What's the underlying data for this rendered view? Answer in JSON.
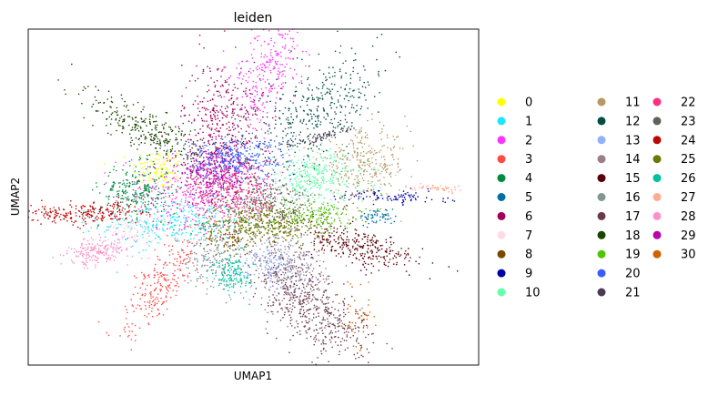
{
  "chart_data": {
    "type": "scatter",
    "title": "leiden",
    "xlabel": "UMAP1",
    "ylabel": "UMAP2",
    "xlim": [
      0,
      10
    ],
    "ylim": [
      0,
      10
    ],
    "grid": false,
    "ticks": false,
    "legend_placement": "right",
    "legend_columns": 3,
    "clusters": [
      {
        "name": "0",
        "color": "#FFFF00",
        "n": 120,
        "blobs": [
          {
            "center": [
              2.91,
              5.85
            ],
            "spread": [
              0.3,
              0.3
            ],
            "rot": 0
          }
        ]
      },
      {
        "name": "1",
        "color": "#1CE6FF",
        "n": 350,
        "blobs": [
          {
            "center": [
              3.21,
              4.23
            ],
            "spread": [
              0.8,
              0.35
            ],
            "rot": 0
          }
        ]
      },
      {
        "name": "2",
        "color": "#FF34FF",
        "n": 600,
        "blobs": [
          {
            "center": [
              3.62,
              5.04
            ],
            "spread": [
              0.8,
              0.6
            ],
            "rot": 0
          },
          {
            "center": [
              5.33,
              8.83
            ],
            "spread": [
              0.35,
              1.0
            ],
            "rot": -15
          }
        ]
      },
      {
        "name": "3",
        "color": "#FF4A46",
        "n": 250,
        "blobs": [
          {
            "center": [
              3.01,
              2.47
            ],
            "spread": [
              0.25,
              0.8
            ],
            "rot": -25
          }
        ]
      },
      {
        "name": "4",
        "color": "#008941",
        "n": 250,
        "blobs": [
          {
            "center": [
              2.4,
              5.18
            ],
            "spread": [
              0.4,
              0.4
            ],
            "rot": 0
          }
        ]
      },
      {
        "name": "5",
        "color": "#006FA6",
        "n": 60,
        "blobs": [
          {
            "center": [
              7.76,
              4.42
            ],
            "spread": [
              0.2,
              0.12
            ],
            "rot": 0
          }
        ]
      },
      {
        "name": "6",
        "color": "#A30059",
        "n": 450,
        "blobs": [
          {
            "center": [
              4.32,
              7.07
            ],
            "spread": [
              0.45,
              1.0
            ],
            "rot": 0
          }
        ]
      },
      {
        "name": "7",
        "color": "#FFDBE5",
        "n": 100,
        "blobs": [
          {
            "center": [
              2.3,
              4.09
            ],
            "spread": [
              0.3,
              0.2
            ],
            "rot": 0
          }
        ]
      },
      {
        "name": "8",
        "color": "#7A4900",
        "n": 80,
        "blobs": [
          {
            "center": [
              4.53,
              3.69
            ],
            "spread": [
              0.3,
              0.2
            ],
            "rot": 0
          }
        ]
      },
      {
        "name": "9",
        "color": "#0000A6",
        "n": 100,
        "blobs": [
          {
            "center": [
              8.06,
              5.01
            ],
            "spread": [
              0.6,
              0.1
            ],
            "rot": -4
          }
        ]
      },
      {
        "name": "10",
        "color": "#63FFAC",
        "n": 350,
        "blobs": [
          {
            "center": [
              6.34,
              5.58
            ],
            "spread": [
              0.6,
              0.4
            ],
            "rot": 0
          }
        ]
      },
      {
        "name": "11",
        "color": "#B79762",
        "n": 300,
        "blobs": [
          {
            "center": [
              7.45,
              5.99
            ],
            "spread": [
              0.5,
              0.5
            ],
            "rot": 0
          }
        ]
      },
      {
        "name": "12",
        "color": "#004D43",
        "n": 400,
        "blobs": [
          {
            "center": [
              6.34,
              7.48
            ],
            "spread": [
              0.5,
              1.0
            ],
            "rot": -35
          }
        ]
      },
      {
        "name": "13",
        "color": "#8FB0FF",
        "n": 200,
        "blobs": [
          {
            "center": [
              5.43,
              3.01
            ],
            "spread": [
              0.4,
              0.4
            ],
            "rot": 0
          }
        ]
      },
      {
        "name": "14",
        "color": "#997D87",
        "n": 300,
        "blobs": [
          {
            "center": [
              5.84,
              2.74
            ],
            "spread": [
              0.4,
              0.6
            ],
            "rot": 0
          }
        ]
      },
      {
        "name": "15",
        "color": "#5A0007",
        "n": 300,
        "blobs": [
          {
            "center": [
              7.35,
              3.5
            ],
            "spread": [
              0.7,
              0.25
            ],
            "rot": -20
          }
        ]
      },
      {
        "name": "16",
        "color": "#809693",
        "n": 150,
        "blobs": [
          {
            "center": [
              4.02,
              3.14
            ],
            "spread": [
              0.3,
              0.4
            ],
            "rot": 0
          }
        ]
      },
      {
        "name": "17",
        "color": "#6A3A4C",
        "n": 500,
        "blobs": [
          {
            "center": [
              6.34,
              1.65
            ],
            "spread": [
              0.4,
              1.0
            ],
            "rot": 35
          }
        ]
      },
      {
        "name": "18",
        "color": "#1B4400",
        "n": 300,
        "blobs": [
          {
            "center": [
              2.71,
              6.94
            ],
            "spread": [
              0.8,
              0.3
            ],
            "rot": -35
          }
        ]
      },
      {
        "name": "19",
        "color": "#4FC601",
        "n": 150,
        "blobs": [
          {
            "center": [
              6.34,
              4.5
            ],
            "spread": [
              0.5,
              0.2
            ],
            "rot": 0
          }
        ]
      },
      {
        "name": "20",
        "color": "#3B5DFF",
        "n": 400,
        "blobs": [
          {
            "center": [
              4.53,
              6.12
            ],
            "spread": [
              0.6,
              0.35
            ],
            "rot": 0
          }
        ]
      },
      {
        "name": "21",
        "color": "#4A3B53",
        "n": 60,
        "blobs": [
          {
            "center": [
              6.55,
              6.8
            ],
            "spread": [
              0.4,
              0.05
            ],
            "rot": 20
          }
        ]
      },
      {
        "name": "22",
        "color": "#FF2F80",
        "n": 350,
        "blobs": [
          {
            "center": [
              4.63,
              5.18
            ],
            "spread": [
              0.5,
              0.5
            ],
            "rot": 0
          }
        ]
      },
      {
        "name": "23",
        "color": "#61615A",
        "n": 250,
        "blobs": [
          {
            "center": [
              5.43,
              4.77
            ],
            "spread": [
              0.5,
              0.4
            ],
            "rot": 0
          }
        ]
      },
      {
        "name": "24",
        "color": "#BA0900",
        "n": 250,
        "blobs": [
          {
            "center": [
              1.19,
              4.5
            ],
            "spread": [
              0.7,
              0.15
            ],
            "rot": 5
          }
        ]
      },
      {
        "name": "25",
        "color": "#6B7900",
        "n": 450,
        "blobs": [
          {
            "center": [
              5.23,
              4.23
            ],
            "spread": [
              0.7,
              0.3
            ],
            "rot": 0
          }
        ]
      },
      {
        "name": "26",
        "color": "#00C2A0",
        "n": 150,
        "blobs": [
          {
            "center": [
              4.53,
              2.74
            ],
            "spread": [
              0.2,
              0.3
            ],
            "rot": 0
          }
        ]
      },
      {
        "name": "27",
        "color": "#FFAA92",
        "n": 50,
        "blobs": [
          {
            "center": [
              9.07,
              5.26
            ],
            "spread": [
              0.3,
              0.05
            ],
            "rot": -5
          }
        ]
      },
      {
        "name": "28",
        "color": "#FF90C9",
        "n": 200,
        "blobs": [
          {
            "center": [
              1.6,
              3.41
            ],
            "spread": [
              0.4,
              0.2
            ],
            "rot": 15
          }
        ]
      },
      {
        "name": "29",
        "color": "#B903AA",
        "n": 250,
        "blobs": [
          {
            "center": [
              4.12,
              5.58
            ],
            "spread": [
              0.4,
              0.4
            ],
            "rot": 0
          }
        ]
      },
      {
        "name": "30",
        "color": "#D16100",
        "n": 50,
        "blobs": [
          {
            "center": [
              7.35,
              1.52
            ],
            "spread": [
              0.2,
              0.5
            ],
            "rot": 0
          }
        ]
      }
    ]
  }
}
